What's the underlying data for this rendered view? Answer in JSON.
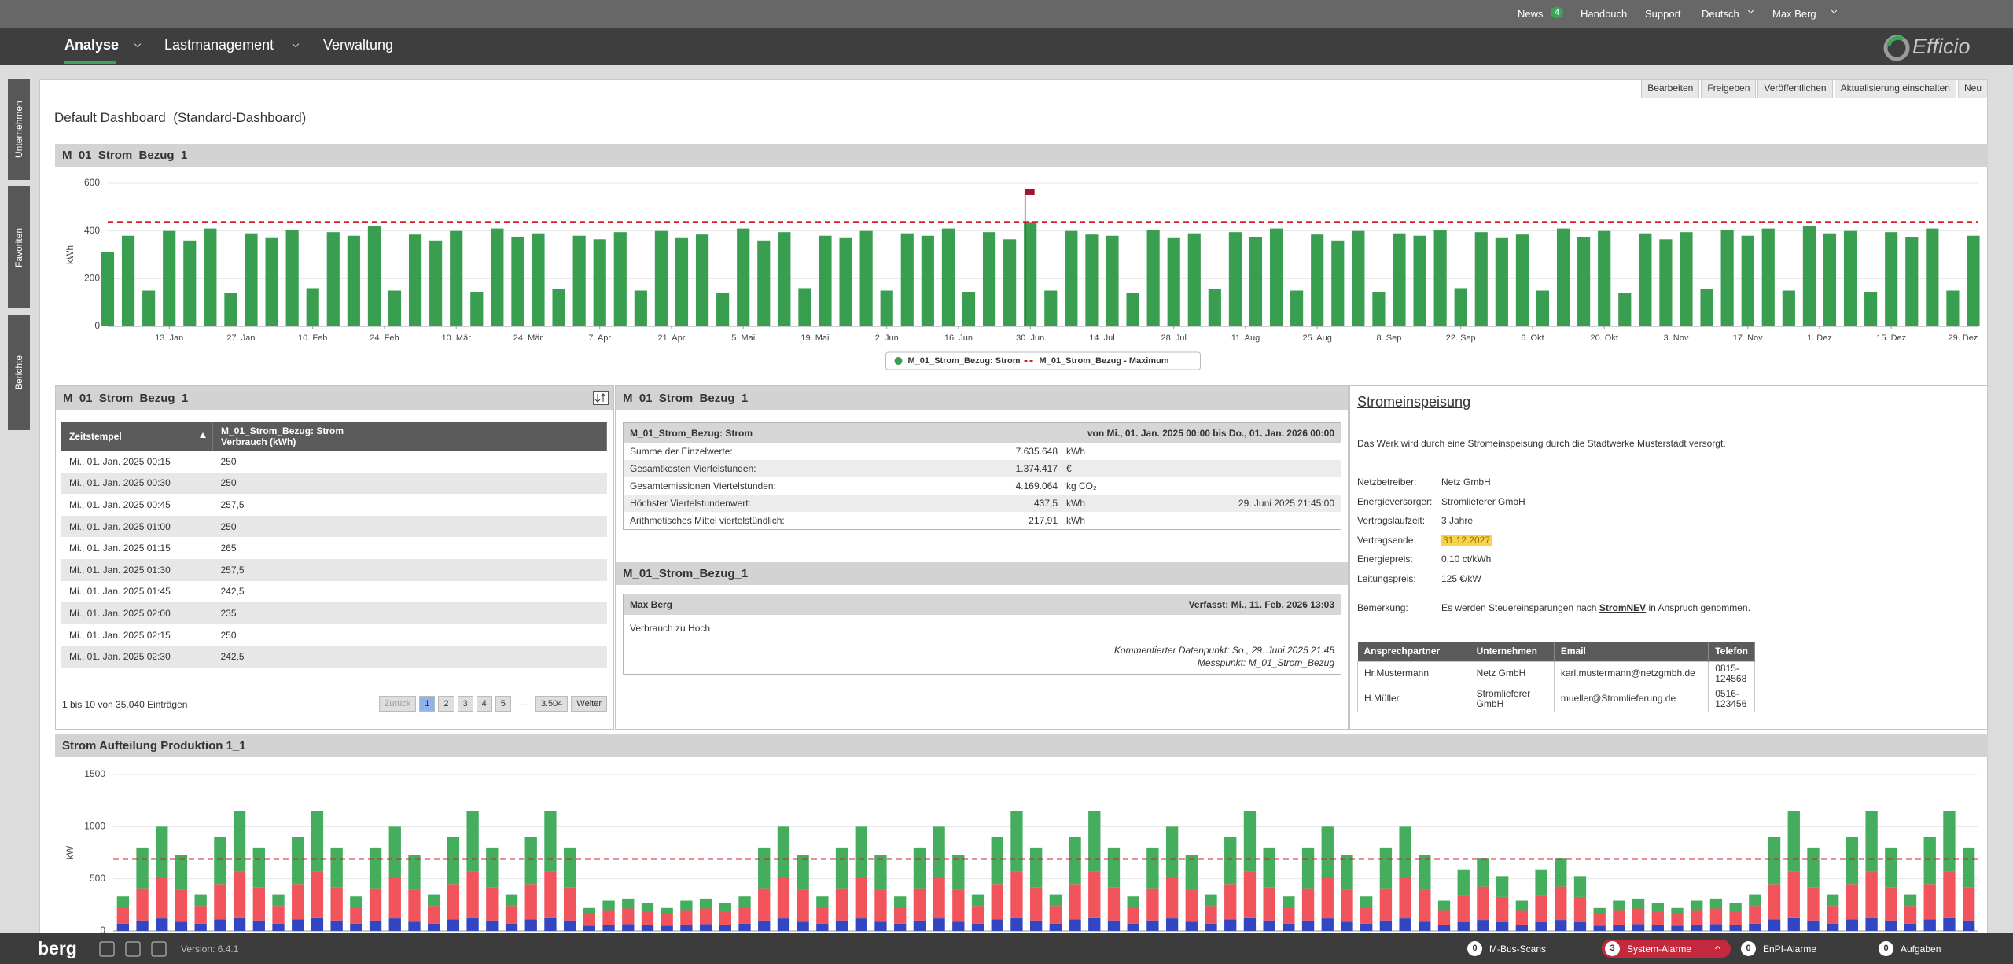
{
  "topbar": {
    "news": "News",
    "news_count": 4,
    "links": [
      "Handbuch",
      "Support",
      "Deutsch",
      "Max Berg"
    ]
  },
  "brand": "Efficio",
  "nav": [
    "Analyse",
    "Lastmanagement",
    "Verwaltung"
  ],
  "sidebar": [
    "Unternehmen",
    "Favoriten",
    "Berichte"
  ],
  "toolbar": [
    "Bearbeiten",
    "Freigeben",
    "Veröffentlichen",
    "Aktualisierung einschalten",
    "Neu"
  ],
  "dashboard_title": "Default Dashboard  (Standard-Dashboard)",
  "chart_data": [
    {
      "type": "bar",
      "title": "M_01_Strom_Bezug_1",
      "ylabel": "kWh",
      "xlim": [
        0,
        365
      ],
      "ylim": [
        0,
        600
      ],
      "yticks": [
        0,
        200,
        400,
        600
      ],
      "grid": true,
      "legend": "bottom",
      "xticks": [
        {
          "value": 12,
          "label": "13. Jan"
        },
        {
          "value": 26,
          "label": "27. Jan"
        },
        {
          "value": 40,
          "label": "10. Feb"
        },
        {
          "value": 54,
          "label": "24. Feb"
        },
        {
          "value": 68,
          "label": "10. Mär"
        },
        {
          "value": 82,
          "label": "24. Mär"
        },
        {
          "value": 96,
          "label": "7. Apr"
        },
        {
          "value": 110,
          "label": "21. Apr"
        },
        {
          "value": 124,
          "label": "5. Mai"
        },
        {
          "value": 138,
          "label": "19. Mai"
        },
        {
          "value": 152,
          "label": "2. Jun"
        },
        {
          "value": 166,
          "label": "16. Jun"
        },
        {
          "value": 180,
          "label": "30. Jun"
        },
        {
          "value": 194,
          "label": "14. Jul"
        },
        {
          "value": 208,
          "label": "28. Jul"
        },
        {
          "value": 222,
          "label": "11. Aug"
        },
        {
          "value": 236,
          "label": "25. Aug"
        },
        {
          "value": 250,
          "label": "8. Sep"
        },
        {
          "value": 264,
          "label": "22. Sep"
        },
        {
          "value": 278,
          "label": "6. Okt"
        },
        {
          "value": 292,
          "label": "20. Okt"
        },
        {
          "value": 306,
          "label": "3. Nov"
        },
        {
          "value": 320,
          "label": "17. Nov"
        },
        {
          "value": 334,
          "label": "1. Dez"
        },
        {
          "value": 348,
          "label": "15. Dez"
        },
        {
          "value": 362,
          "label": "29. Dez"
        }
      ],
      "flag_x": 179,
      "x": [
        0,
        4,
        8,
        12,
        16,
        20,
        24,
        28,
        32,
        36,
        40,
        44,
        48,
        52,
        56,
        60,
        64,
        68,
        72,
        76,
        80,
        84,
        88,
        92,
        96,
        100,
        104,
        108,
        112,
        116,
        120,
        124,
        128,
        132,
        136,
        140,
        144,
        148,
        152,
        156,
        160,
        164,
        168,
        172,
        176,
        180,
        184,
        188,
        192,
        196,
        200,
        204,
        208,
        212,
        216,
        220,
        224,
        228,
        232,
        236,
        240,
        244,
        248,
        252,
        256,
        260,
        264,
        268,
        272,
        276,
        280,
        284,
        288,
        292,
        296,
        300,
        304,
        308,
        312,
        316,
        320,
        324,
        328,
        332,
        336,
        340,
        344,
        348,
        352,
        356,
        360,
        364
      ],
      "series": [
        {
          "name": "M_01_Strom_Bezug: Strom",
          "color": "#3a9e50",
          "values": [
            310,
            380,
            150,
            400,
            360,
            410,
            140,
            390,
            370,
            405,
            160,
            395,
            380,
            420,
            150,
            385,
            360,
            400,
            145,
            410,
            375,
            390,
            155,
            380,
            365,
            395,
            150,
            400,
            370,
            385,
            140,
            410,
            360,
            395,
            160,
            380,
            370,
            400,
            150,
            390,
            380,
            410,
            145,
            395,
            365,
            437.5,
            150,
            400,
            385,
            380,
            140,
            405,
            370,
            390,
            155,
            395,
            375,
            410,
            150,
            385,
            360,
            400,
            145,
            390,
            380,
            405,
            160,
            395,
            370,
            385,
            150,
            410,
            375,
            400,
            140,
            390,
            365,
            395,
            155,
            405,
            380,
            410,
            150,
            420,
            390,
            400,
            145,
            395,
            375,
            410,
            150,
            380
          ]
        },
        {
          "name": "M_01_Strom_Bezug - Maximum",
          "color": "#d3202f",
          "style": "dashed",
          "value": 437.5
        }
      ]
    },
    {
      "type": "bar",
      "stacked": true,
      "title": "Strom Aufteilung Produktion 1_1",
      "ylabel": "kW",
      "ylim": [
        0,
        1500
      ],
      "yticks": [
        0,
        500,
        1000,
        1500
      ],
      "grid": true,
      "max_line": 690,
      "max_line_color": "#d3202f",
      "series": [
        {
          "color": "#3346c2",
          "values": [
            70,
            100,
            120,
            95,
            70,
            110,
            130,
            100,
            70,
            110,
            130,
            100,
            70,
            100,
            120,
            95,
            70,
            110,
            130,
            100,
            70,
            110,
            130,
            100,
            50,
            60,
            65,
            55,
            50,
            60,
            65,
            55,
            70,
            100,
            120,
            95,
            70,
            100,
            120,
            95,
            70,
            100,
            120,
            95,
            70,
            110,
            130,
            100,
            70,
            110,
            130,
            100,
            70,
            100,
            120,
            95,
            70,
            110,
            130,
            100,
            70,
            100,
            120,
            95,
            70,
            100,
            120,
            95,
            60,
            90,
            105,
            85,
            60,
            90,
            105,
            85,
            50,
            60,
            65,
            55,
            50,
            60,
            65,
            55,
            70,
            110,
            130,
            100,
            70,
            110,
            130,
            100,
            70,
            110,
            130,
            100
          ]
        },
        {
          "color": "#f2545c",
          "values": [
            160,
            310,
            400,
            300,
            170,
            340,
            440,
            320,
            170,
            340,
            440,
            320,
            160,
            310,
            400,
            300,
            170,
            340,
            440,
            320,
            170,
            340,
            440,
            320,
            110,
            140,
            150,
            130,
            110,
            140,
            150,
            130,
            160,
            310,
            400,
            300,
            160,
            310,
            400,
            300,
            160,
            310,
            400,
            300,
            170,
            340,
            440,
            320,
            170,
            340,
            440,
            320,
            160,
            310,
            400,
            300,
            170,
            340,
            440,
            320,
            160,
            310,
            400,
            300,
            160,
            310,
            400,
            300,
            140,
            250,
            320,
            240,
            140,
            250,
            320,
            240,
            110,
            140,
            150,
            130,
            110,
            140,
            150,
            130,
            170,
            340,
            440,
            320,
            170,
            340,
            440,
            320,
            170,
            340,
            440,
            320
          ]
        },
        {
          "color": "#45ad5e",
          "values": [
            100,
            390,
            480,
            330,
            110,
            450,
            580,
            380,
            110,
            450,
            580,
            380,
            100,
            390,
            480,
            330,
            110,
            450,
            580,
            380,
            110,
            450,
            580,
            380,
            60,
            90,
            95,
            80,
            60,
            90,
            95,
            80,
            100,
            390,
            480,
            330,
            100,
            390,
            480,
            330,
            100,
            390,
            480,
            330,
            110,
            450,
            580,
            380,
            110,
            450,
            580,
            380,
            100,
            390,
            480,
            330,
            110,
            450,
            580,
            380,
            100,
            390,
            480,
            330,
            100,
            390,
            480,
            330,
            90,
            250,
            275,
            200,
            90,
            250,
            275,
            200,
            60,
            90,
            95,
            80,
            60,
            90,
            95,
            80,
            110,
            450,
            580,
            380,
            110,
            450,
            580,
            380,
            110,
            450,
            580,
            380
          ]
        }
      ]
    }
  ],
  "table_widget": {
    "title": "M_01_Strom_Bezug_1",
    "columns": [
      [
        "Zeitstempel"
      ],
      [
        "M_01_Strom_Bezug: Strom",
        "Verbrauch (kWh)"
      ]
    ],
    "rows": [
      [
        "Mi., 01. Jan. 2025 00:15",
        "250"
      ],
      [
        "Mi., 01. Jan. 2025 00:30",
        "250"
      ],
      [
        "Mi., 01. Jan. 2025 00:45",
        "257,5"
      ],
      [
        "Mi., 01. Jan. 2025 01:00",
        "250"
      ],
      [
        "Mi., 01. Jan. 2025 01:15",
        "265"
      ],
      [
        "Mi., 01. Jan. 2025 01:30",
        "257,5"
      ],
      [
        "Mi., 01. Jan. 2025 01:45",
        "242,5"
      ],
      [
        "Mi., 01. Jan. 2025 02:00",
        "235"
      ],
      [
        "Mi., 01. Jan. 2025 02:15",
        "250"
      ],
      [
        "Mi., 01. Jan. 2025 02:30",
        "242,5"
      ]
    ],
    "info": "1 bis 10 von 35.040 Einträgen",
    "pages": [
      "Zurück",
      "1",
      "2",
      "3",
      "4",
      "5",
      "…",
      "3.504",
      "Weiter"
    ]
  },
  "stats_widget": {
    "title": "M_01_Strom_Bezug_1",
    "header": "M_01_Strom_Bezug: Strom",
    "period": "von Mi., 01. Jan. 2025 00:00 bis Do., 01. Jan. 2026 00:00",
    "rows": [
      [
        "Summe der Einzelwerte:",
        "7.635.648",
        "kWh"
      ],
      [
        "Gesamtkosten Viertelstunden:",
        "1.374.417",
        "€"
      ],
      [
        "Gesamtemissionen Viertelstunden:",
        "4.169.064",
        "kg CO₂"
      ],
      [
        "Höchster Viertelstundenwert:",
        "437,5",
        "kWh",
        "29. Juni 2025 21:45:00"
      ],
      [
        "Arithmetisches Mittel viertelstündlich:",
        "217,91",
        "kWh"
      ]
    ]
  },
  "comment_widget": {
    "title": "M_01_Strom_Bezug_1",
    "author": "Max Berg",
    "written": "Verfasst: Mi., 11. Feb. 2026 13:03",
    "text": "Verbrauch zu Hoch",
    "datapoint": "Kommentierter Datenpunkt: So., 29. Juni 2025 21:45",
    "meter": "Messpunkt: M_01_Strom_Bezug"
  },
  "info_widget": {
    "title": "Stromeinspeisung",
    "description": "Das Werk wird durch eine Stromeinspeisung durch die Stadtwerke Musterstadt versorgt.",
    "fields": [
      [
        "Netzbetreiber:",
        "Netz GmbH"
      ],
      [
        "Energieversorger:",
        "Stromlieferer GmbH"
      ],
      [
        "Vertragslaufzeit:",
        "3 Jahre"
      ],
      [
        "Vertragsende",
        "31.12.2027"
      ],
      [
        "Energiepreis:",
        "0,10 ct/kWh"
      ],
      [
        "Leitungspreis:",
        "125 €/kW"
      ]
    ],
    "remark_label": "Bemerkung:",
    "remark": [
      "Es werden Steuereinsparungen nach ",
      "StromNEV",
      " in Anspruch genommen."
    ],
    "contacts": {
      "columns": [
        "Ansprechpartner",
        "Unternehmen",
        "Email",
        "Telefon"
      ],
      "rows": [
        [
          "Hr.Mustermann",
          "Netz GmbH",
          "karl.mustermann@netzgmbh.de",
          "0815-124568"
        ],
        [
          "H.Müller",
          "Stromlieferer GmbH",
          "mueller@Stromlieferung.de",
          "0516-123456"
        ]
      ]
    }
  },
  "footer": {
    "logo": "berg",
    "version": "Version: 6.4.1",
    "badges": [
      {
        "count": 0,
        "label": "M-Bus-Scans"
      },
      {
        "count": 3,
        "label": "System-Alarme"
      },
      {
        "count": 0,
        "label": "EnPI-Alarme"
      },
      {
        "count": 0,
        "label": "Aufgaben"
      }
    ]
  }
}
